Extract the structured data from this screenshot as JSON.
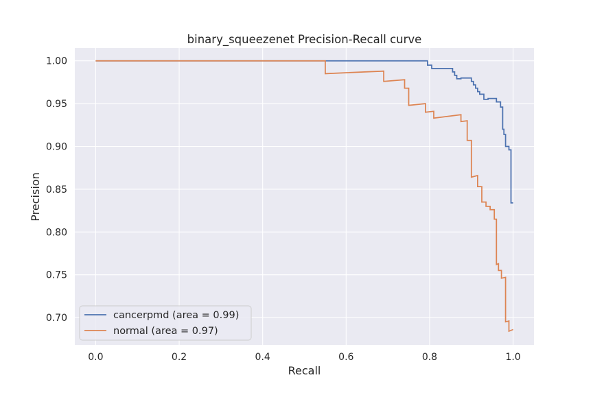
{
  "chart_data": {
    "type": "line",
    "title": "binary_squeezenet Precision-Recall curve",
    "xlabel": "Recall",
    "ylabel": "Precision",
    "xlim": [
      -0.05,
      1.05
    ],
    "ylim": [
      0.668,
      1.015
    ],
    "xticks": [
      0.0,
      0.2,
      0.4,
      0.6,
      0.8,
      1.0
    ],
    "xtick_labels": [
      "0.0",
      "0.2",
      "0.4",
      "0.6",
      "0.8",
      "1.0"
    ],
    "yticks": [
      0.7,
      0.75,
      0.8,
      0.85,
      0.9,
      0.95,
      1.0
    ],
    "ytick_labels": [
      "0.70",
      "0.75",
      "0.80",
      "0.85",
      "0.90",
      "0.95",
      "1.00"
    ],
    "grid": true,
    "legend_position": "lower-left",
    "background_color": "#eaeaf2",
    "series": [
      {
        "name": "cancerpmd (area = 0.99)",
        "color": "#4c72b0",
        "x": [
          0.0,
          0.55,
          0.795,
          0.795,
          0.805,
          0.805,
          0.855,
          0.855,
          0.86,
          0.86,
          0.865,
          0.865,
          0.875,
          0.875,
          0.9,
          0.9,
          0.905,
          0.905,
          0.91,
          0.91,
          0.915,
          0.915,
          0.92,
          0.92,
          0.93,
          0.93,
          0.94,
          0.94,
          0.96,
          0.96,
          0.97,
          0.97,
          0.975,
          0.975,
          0.978,
          0.978,
          0.982,
          0.982,
          0.99,
          0.99,
          0.995,
          0.995,
          1.0
        ],
        "y": [
          1.0,
          1.0,
          1.0,
          0.995,
          0.995,
          0.991,
          0.991,
          0.987,
          0.987,
          0.983,
          0.983,
          0.979,
          0.979,
          0.98,
          0.98,
          0.976,
          0.976,
          0.972,
          0.972,
          0.968,
          0.968,
          0.964,
          0.964,
          0.961,
          0.961,
          0.955,
          0.955,
          0.956,
          0.956,
          0.952,
          0.952,
          0.946,
          0.946,
          0.92,
          0.92,
          0.914,
          0.914,
          0.9,
          0.9,
          0.896,
          0.896,
          0.834,
          0.834
        ]
      },
      {
        "name": "normal (area = 0.97)",
        "color": "#dd8452",
        "x": [
          0.0,
          0.55,
          0.55,
          0.69,
          0.69,
          0.74,
          0.74,
          0.75,
          0.75,
          0.79,
          0.79,
          0.81,
          0.81,
          0.875,
          0.875,
          0.89,
          0.89,
          0.9,
          0.9,
          0.915,
          0.915,
          0.925,
          0.925,
          0.935,
          0.935,
          0.945,
          0.945,
          0.955,
          0.955,
          0.96,
          0.96,
          0.965,
          0.965,
          0.972,
          0.972,
          0.982,
          0.982,
          0.99,
          0.99,
          1.0
        ],
        "y": [
          1.0,
          1.0,
          0.985,
          0.988,
          0.976,
          0.978,
          0.968,
          0.968,
          0.948,
          0.95,
          0.94,
          0.941,
          0.933,
          0.937,
          0.929,
          0.93,
          0.907,
          0.907,
          0.864,
          0.866,
          0.853,
          0.853,
          0.835,
          0.835,
          0.83,
          0.83,
          0.826,
          0.826,
          0.815,
          0.815,
          0.762,
          0.763,
          0.755,
          0.755,
          0.746,
          0.747,
          0.695,
          0.696,
          0.684,
          0.686
        ]
      }
    ]
  }
}
